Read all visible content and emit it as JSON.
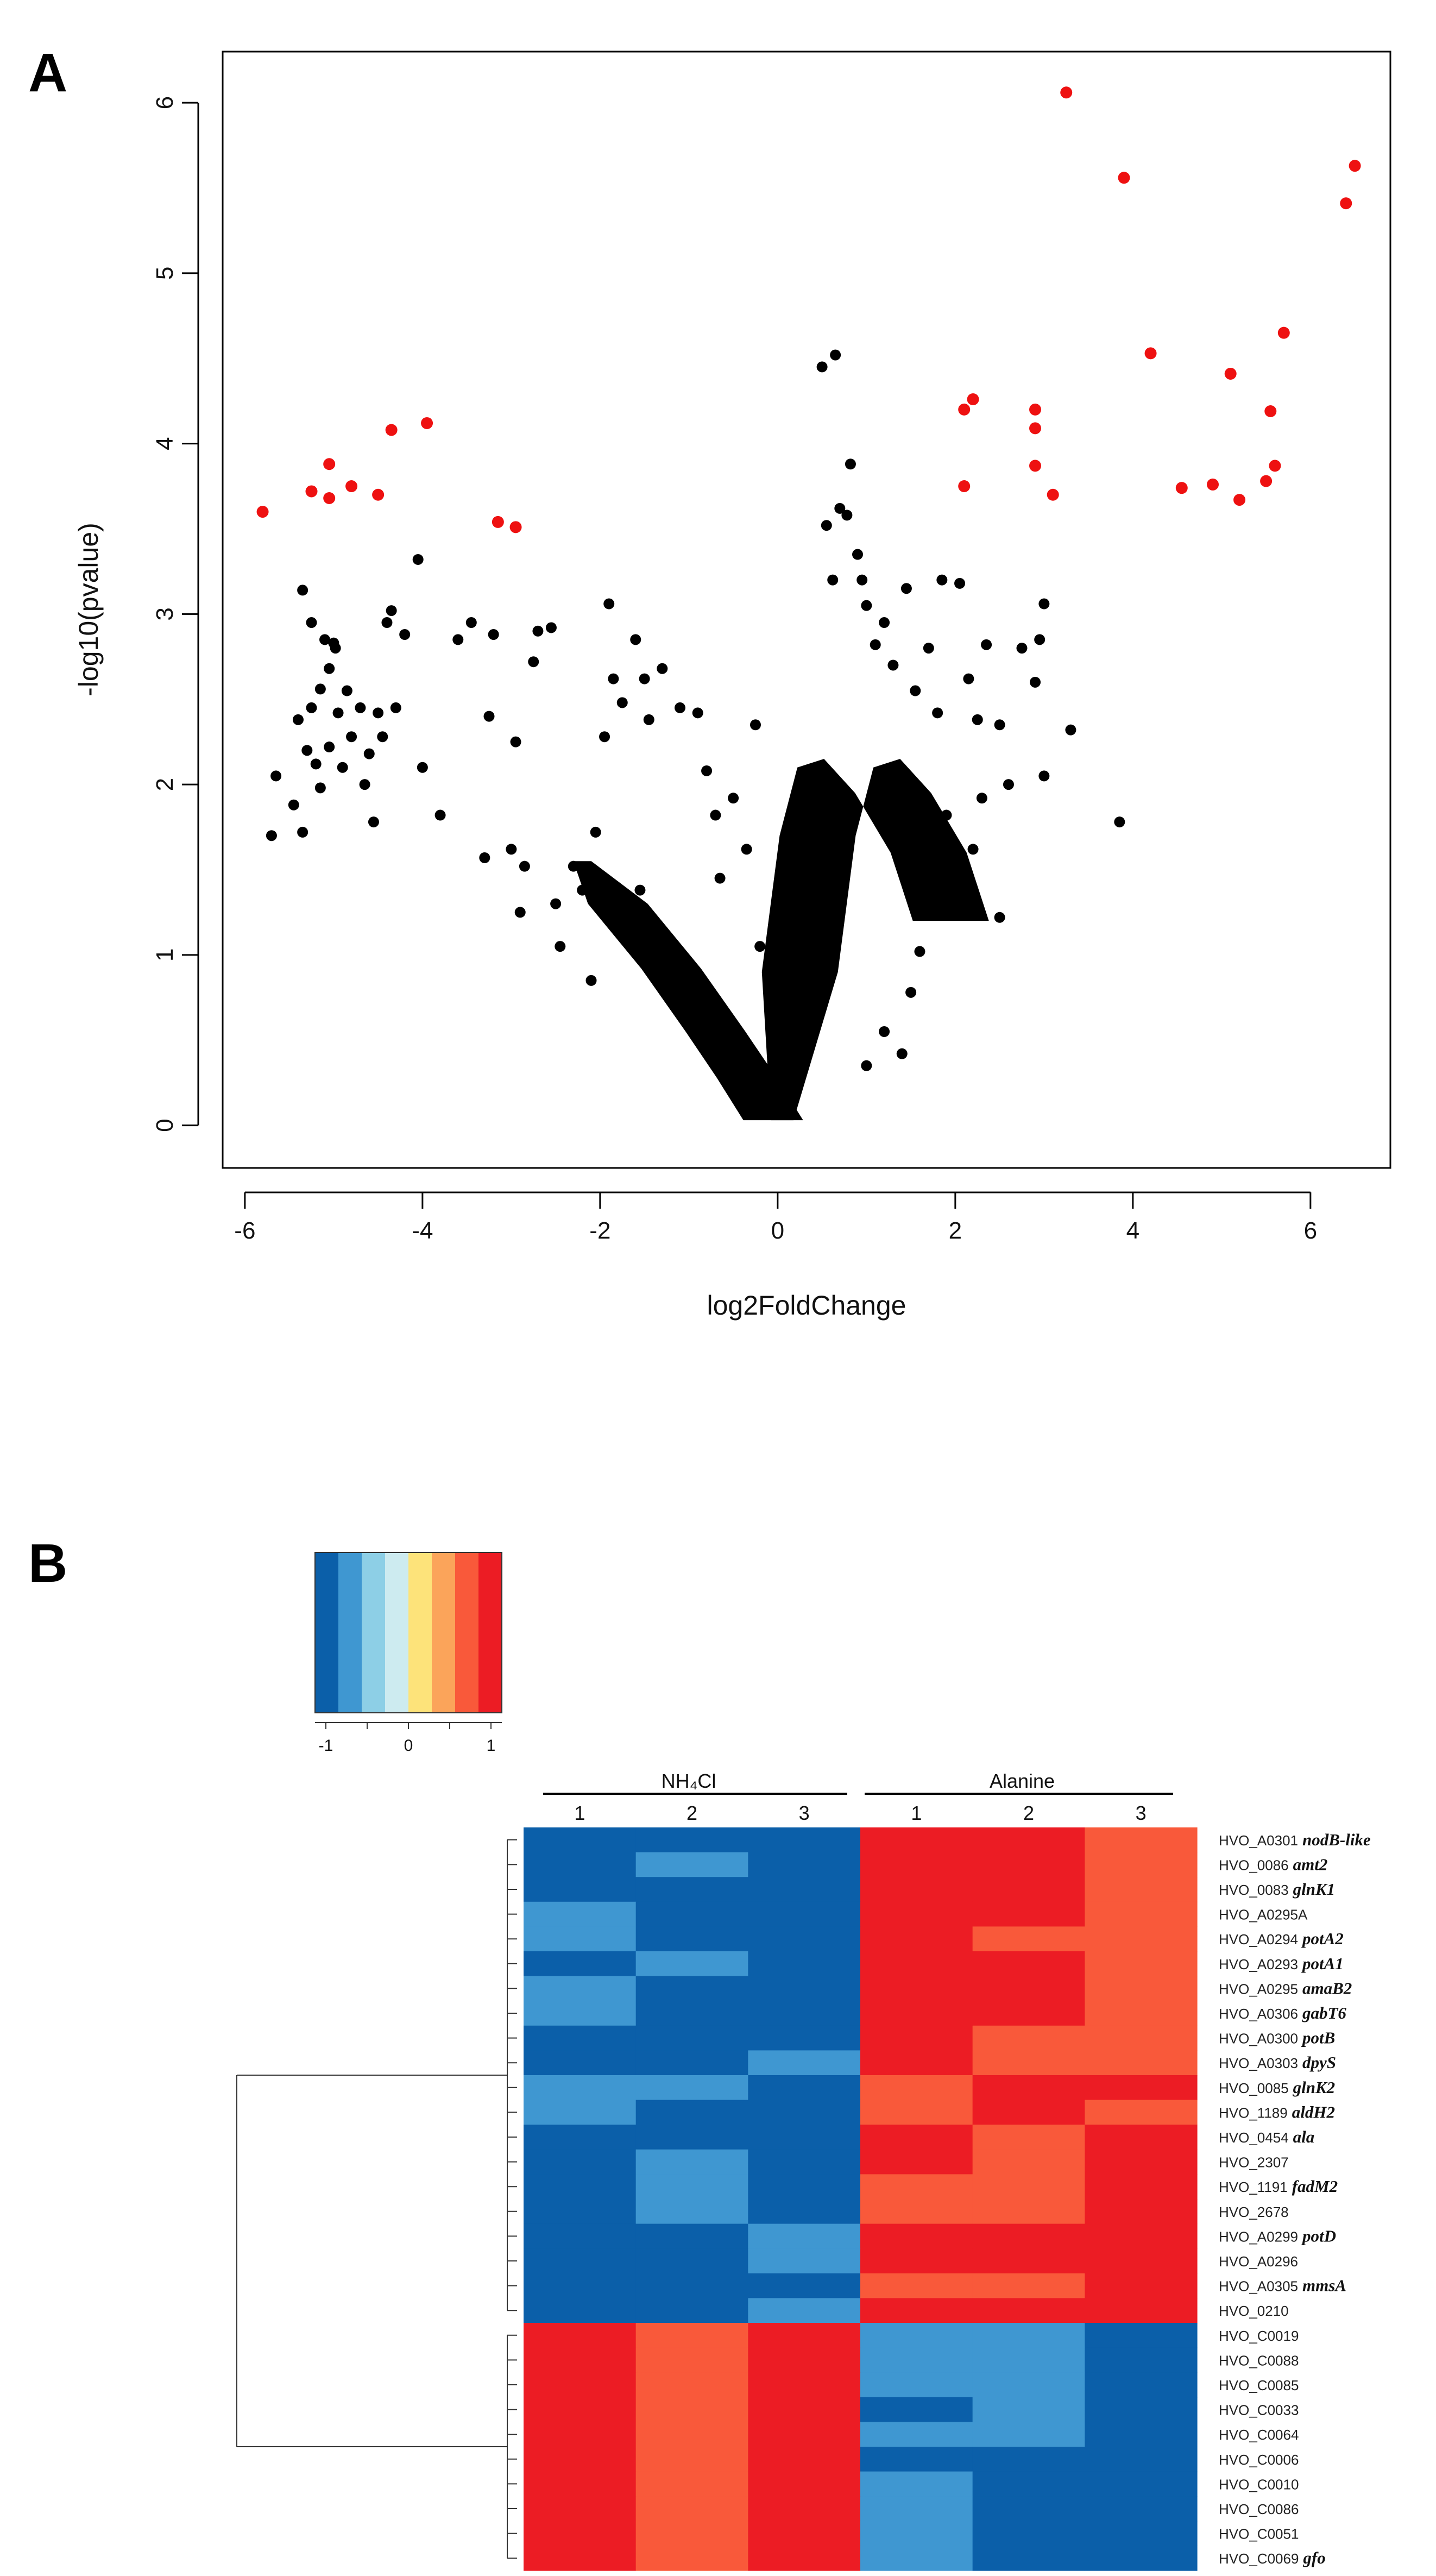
{
  "panel_a": {
    "label": "A"
  },
  "panel_b": {
    "label": "B"
  },
  "chart_data": [
    {
      "type": "scatter",
      "chart": "volcano",
      "xlabel": "log2FoldChange",
      "ylabel": "-log10(pvalue)",
      "xlim": [
        -6.25,
        6.9
      ],
      "ylim": [
        -0.25,
        6.3
      ],
      "xticks": [
        -6,
        -4,
        -2,
        0,
        2,
        4,
        6
      ],
      "yticks": [
        0,
        1,
        2,
        3,
        4,
        5,
        6
      ],
      "colors": {
        "significant": "#ee1111",
        "other": "#000000"
      },
      "significant_points": [
        [
          -5.8,
          3.6
        ],
        [
          -5.25,
          3.72
        ],
        [
          -5.05,
          3.88
        ],
        [
          -5.05,
          3.68
        ],
        [
          -4.8,
          3.75
        ],
        [
          -4.5,
          3.7
        ],
        [
          -4.35,
          4.08
        ],
        [
          -3.95,
          4.12
        ],
        [
          -3.15,
          3.54
        ],
        [
          -2.95,
          3.51
        ],
        [
          2.1,
          3.75
        ],
        [
          2.1,
          4.2
        ],
        [
          2.2,
          4.26
        ],
        [
          2.9,
          4.2
        ],
        [
          2.9,
          4.09
        ],
        [
          2.9,
          3.87
        ],
        [
          3.1,
          3.7
        ],
        [
          3.25,
          6.06
        ],
        [
          3.9,
          5.56
        ],
        [
          4.2,
          4.53
        ],
        [
          4.55,
          3.74
        ],
        [
          4.9,
          3.76
        ],
        [
          5.1,
          4.41
        ],
        [
          5.2,
          3.67
        ],
        [
          5.5,
          3.78
        ],
        [
          5.55,
          4.19
        ],
        [
          5.6,
          3.87
        ],
        [
          5.7,
          4.65
        ],
        [
          6.4,
          5.41
        ],
        [
          6.5,
          5.63
        ]
      ],
      "other_points": [
        [
          -5.7,
          1.7
        ],
        [
          -5.65,
          2.05
        ],
        [
          -5.45,
          1.88
        ],
        [
          -5.4,
          2.38
        ],
        [
          -5.35,
          3.14
        ],
        [
          -5.35,
          1.72
        ],
        [
          -5.3,
          2.2
        ],
        [
          -5.25,
          2.45
        ],
        [
          -5.25,
          2.95
        ],
        [
          -5.2,
          2.12
        ],
        [
          -5.15,
          2.56
        ],
        [
          -5.15,
          1.98
        ],
        [
          -5.1,
          2.85
        ],
        [
          -5.05,
          2.22
        ],
        [
          -5.05,
          2.68
        ],
        [
          -5.0,
          2.83
        ],
        [
          -4.98,
          2.8
        ],
        [
          -4.95,
          2.42
        ],
        [
          -4.9,
          2.1
        ],
        [
          -4.85,
          2.55
        ],
        [
          -4.8,
          2.28
        ],
        [
          -4.7,
          2.45
        ],
        [
          -4.65,
          2.0
        ],
        [
          -4.6,
          2.18
        ],
        [
          -4.55,
          1.78
        ],
        [
          -4.5,
          2.42
        ],
        [
          -4.45,
          2.28
        ],
        [
          -4.4,
          2.95
        ],
        [
          -4.35,
          3.02
        ],
        [
          -4.3,
          2.45
        ],
        [
          -4.2,
          2.88
        ],
        [
          -4.05,
          3.32
        ],
        [
          -4.0,
          2.1
        ],
        [
          -3.8,
          1.82
        ],
        [
          -3.6,
          2.85
        ],
        [
          -3.45,
          2.95
        ],
        [
          -3.3,
          1.57
        ],
        [
          -3.25,
          2.4
        ],
        [
          -3.2,
          2.88
        ],
        [
          -3.0,
          1.62
        ],
        [
          -2.95,
          2.25
        ],
        [
          -2.9,
          1.25
        ],
        [
          -2.85,
          1.52
        ],
        [
          -2.75,
          2.72
        ],
        [
          -2.7,
          2.9
        ],
        [
          -2.55,
          2.92
        ],
        [
          -2.5,
          1.3
        ],
        [
          -2.45,
          1.05
        ],
        [
          -2.3,
          1.52
        ],
        [
          -2.2,
          1.38
        ],
        [
          -2.1,
          0.85
        ],
        [
          -2.05,
          1.72
        ],
        [
          -1.95,
          2.28
        ],
        [
          -1.9,
          3.06
        ],
        [
          -1.85,
          2.62
        ],
        [
          -1.75,
          2.48
        ],
        [
          -1.6,
          2.85
        ],
        [
          -1.55,
          1.38
        ],
        [
          -1.5,
          2.62
        ],
        [
          -1.45,
          2.38
        ],
        [
          -1.3,
          2.68
        ],
        [
          -1.2,
          0.98
        ],
        [
          -1.1,
          2.45
        ],
        [
          -0.9,
          2.42
        ],
        [
          -0.8,
          2.08
        ],
        [
          -0.7,
          1.82
        ],
        [
          -0.65,
          1.45
        ],
        [
          -0.5,
          1.92
        ],
        [
          -0.35,
          1.62
        ],
        [
          -0.25,
          2.35
        ],
        [
          -0.2,
          1.05
        ],
        [
          0.15,
          0.52
        ],
        [
          0.35,
          1.85
        ],
        [
          0.5,
          4.45
        ],
        [
          0.55,
          3.52
        ],
        [
          0.62,
          3.2
        ],
        [
          0.65,
          4.52
        ],
        [
          0.7,
          3.62
        ],
        [
          0.78,
          3.58
        ],
        [
          0.82,
          3.88
        ],
        [
          0.9,
          3.35
        ],
        [
          0.95,
          3.2
        ],
        [
          1.0,
          3.05
        ],
        [
          1.1,
          2.82
        ],
        [
          1.2,
          2.95
        ],
        [
          1.3,
          2.7
        ],
        [
          1.45,
          3.15
        ],
        [
          1.55,
          2.55
        ],
        [
          1.6,
          1.02
        ],
        [
          1.7,
          2.8
        ],
        [
          1.8,
          2.42
        ],
        [
          1.85,
          3.2
        ],
        [
          1.9,
          1.82
        ],
        [
          2.05,
          3.18
        ],
        [
          2.15,
          2.62
        ],
        [
          2.25,
          2.38
        ],
        [
          2.3,
          1.92
        ],
        [
          2.35,
          2.82
        ],
        [
          2.5,
          2.35
        ],
        [
          2.6,
          2.0
        ],
        [
          2.75,
          2.8
        ],
        [
          2.9,
          2.6
        ],
        [
          2.95,
          2.85
        ],
        [
          3.0,
          3.06
        ],
        [
          3.0,
          2.05
        ],
        [
          3.3,
          2.32
        ],
        [
          3.85,
          1.78
        ],
        [
          1.2,
          0.55
        ],
        [
          1.4,
          0.42
        ],
        [
          1.0,
          0.35
        ],
        [
          1.5,
          0.78
        ],
        [
          2.0,
          1.4
        ],
        [
          2.2,
          1.62
        ],
        [
          2.5,
          1.22
        ]
      ],
      "cloud": {
        "left_arm": [
          [
            -2.2,
            1.55
          ],
          [
            -1.8,
            1.3
          ],
          [
            -1.2,
            0.92
          ],
          [
            -0.7,
            0.55
          ],
          [
            -0.35,
            0.28
          ],
          [
            -0.05,
            0.03
          ]
        ],
        "right_arm": [
          [
            0.05,
            0.03
          ],
          [
            0.25,
            0.9
          ],
          [
            0.45,
            1.7
          ],
          [
            0.65,
            2.1
          ],
          [
            0.95,
            2.15
          ],
          [
            1.3,
            1.95
          ],
          [
            1.7,
            1.6
          ],
          [
            1.95,
            1.2
          ]
        ]
      }
    },
    {
      "type": "heatmap",
      "chart": "expression heatmap",
      "group_labels": [
        "NH₄Cl",
        "Alanine"
      ],
      "column_labels": [
        "1",
        "2",
        "3",
        "1",
        "2",
        "3"
      ],
      "color_scale": {
        "colors": [
          "#0b5fa9",
          "#3f97d1",
          "#8dcfe6",
          "#cdebf0",
          "#fde37a",
          "#fba45a",
          "#f9593a",
          "#ec1c24"
        ],
        "tick_labels": [
          "-1",
          "0",
          "1"
        ],
        "tick_values": [
          -1,
          0,
          1
        ]
      },
      "rows": [
        {
          "id": "HVO_A0301",
          "gene": "nodB-like",
          "values": [
            -1,
            -1,
            -1,
            1,
            1,
            0.7
          ]
        },
        {
          "id": "HVO_0086",
          "gene": "amt2",
          "values": [
            -1,
            -0.7,
            -1,
            1,
            1,
            0.7
          ]
        },
        {
          "id": "HVO_0083",
          "gene": "glnK1",
          "values": [
            -1,
            -1,
            -1,
            1,
            1,
            0.7
          ]
        },
        {
          "id": "HVO_A0295A",
          "gene": "",
          "values": [
            -0.7,
            -1,
            -1,
            1,
            1,
            0.7
          ]
        },
        {
          "id": "HVO_A0294",
          "gene": "potA2",
          "values": [
            -0.7,
            -1,
            -1,
            1,
            0.7,
            0.7
          ]
        },
        {
          "id": "HVO_A0293",
          "gene": "potA1",
          "values": [
            -1,
            -0.7,
            -1,
            1,
            1,
            0.7
          ]
        },
        {
          "id": "HVO_A0295",
          "gene": "amaB2",
          "values": [
            -0.7,
            -1,
            -1,
            1,
            1,
            0.7
          ]
        },
        {
          "id": "HVO_A0306",
          "gene": "gabT6",
          "values": [
            -0.7,
            -1,
            -1,
            1,
            1,
            0.7
          ]
        },
        {
          "id": "HVO_A0300",
          "gene": "potB",
          "values": [
            -1,
            -1,
            -1,
            1,
            0.7,
            0.7
          ]
        },
        {
          "id": "HVO_A0303",
          "gene": "dpyS",
          "values": [
            -1,
            -1,
            -0.7,
            1,
            0.7,
            0.7
          ]
        },
        {
          "id": "HVO_0085",
          "gene": "glnK2",
          "values": [
            -0.7,
            -0.7,
            -1,
            0.7,
            1,
            1
          ]
        },
        {
          "id": "HVO_1189",
          "gene": "aldH2",
          "values": [
            -0.7,
            -1,
            -1,
            0.7,
            1,
            0.7
          ]
        },
        {
          "id": "HVO_0454",
          "gene": "ala",
          "values": [
            -1,
            -1,
            -1,
            1,
            0.7,
            1
          ]
        },
        {
          "id": "HVO_2307",
          "gene": "",
          "values": [
            -1,
            -0.7,
            -1,
            1,
            0.7,
            1
          ]
        },
        {
          "id": "HVO_1191",
          "gene": "fadM2",
          "values": [
            -1,
            -0.7,
            -1,
            0.7,
            0.7,
            1
          ]
        },
        {
          "id": "HVO_2678",
          "gene": "",
          "values": [
            -1,
            -0.7,
            -1,
            0.7,
            0.7,
            1
          ]
        },
        {
          "id": "HVO_A0299",
          "gene": "potD",
          "values": [
            -1,
            -1,
            -0.7,
            1,
            1,
            1
          ]
        },
        {
          "id": "HVO_A0296",
          "gene": "",
          "values": [
            -1,
            -1,
            -0.7,
            1,
            1,
            1
          ]
        },
        {
          "id": "HVO_A0305",
          "gene": "mmsA",
          "values": [
            -1,
            -1,
            -1,
            0.7,
            0.7,
            1
          ]
        },
        {
          "id": "HVO_0210",
          "gene": "",
          "values": [
            -1,
            -1,
            -0.7,
            1,
            1,
            1
          ]
        },
        {
          "id": "HVO_C0019",
          "gene": "",
          "values": [
            1,
            0.7,
            1,
            -0.7,
            -0.7,
            -1
          ]
        },
        {
          "id": "HVO_C0088",
          "gene": "",
          "values": [
            1,
            0.7,
            1,
            -0.7,
            -0.7,
            -1
          ]
        },
        {
          "id": "HVO_C0085",
          "gene": "",
          "values": [
            1,
            0.7,
            1,
            -0.7,
            -0.7,
            -1
          ]
        },
        {
          "id": "HVO_C0033",
          "gene": "",
          "values": [
            1,
            0.7,
            1,
            -1,
            -0.7,
            -1
          ]
        },
        {
          "id": "HVO_C0064",
          "gene": "",
          "values": [
            1,
            0.7,
            1,
            -0.7,
            -0.7,
            -1
          ]
        },
        {
          "id": "HVO_C0006",
          "gene": "",
          "values": [
            1,
            0.7,
            1,
            -1,
            -1,
            -1
          ]
        },
        {
          "id": "HVO_C0010",
          "gene": "",
          "values": [
            1,
            0.7,
            1,
            -0.7,
            -1,
            -1
          ]
        },
        {
          "id": "HVO_C0086",
          "gene": "",
          "values": [
            1,
            0.7,
            1,
            -0.7,
            -1,
            -1
          ]
        },
        {
          "id": "HVO_C0051",
          "gene": "",
          "values": [
            1,
            0.7,
            1,
            -0.7,
            -1,
            -1
          ]
        },
        {
          "id": "HVO_C0069",
          "gene": "gfo",
          "values": [
            1,
            0.7,
            1,
            -0.7,
            -1,
            -1
          ]
        }
      ],
      "dendrogram": {
        "cluster_sizes": [
          20,
          10
        ]
      }
    }
  ]
}
